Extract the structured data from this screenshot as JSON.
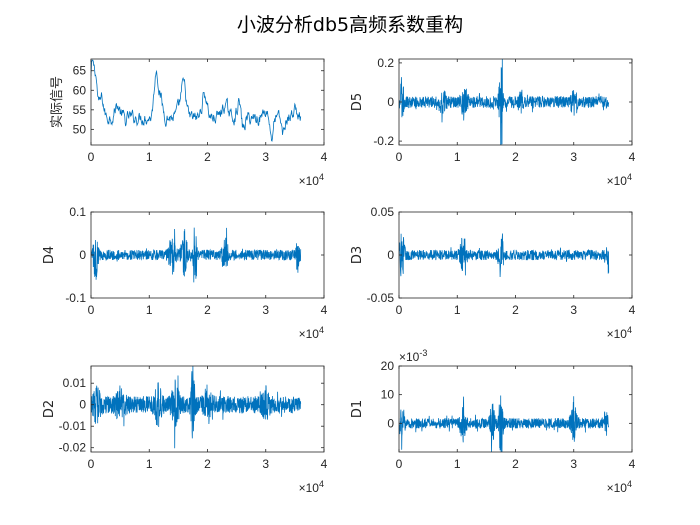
{
  "figure_title": "小波分析db5高频系数重构",
  "line_color": "#0072BD",
  "chart_data": [
    {
      "type": "line",
      "name": "signal",
      "ylabel": "实际信号",
      "xlim": [
        0,
        4
      ],
      "ylim": [
        46,
        68
      ],
      "xticks": [
        {
          "v": 0,
          "t": "0"
        },
        {
          "v": 1,
          "t": "1"
        },
        {
          "v": 2,
          "t": "2"
        },
        {
          "v": 3,
          "t": "3"
        },
        {
          "v": 4,
          "t": "4"
        }
      ],
      "yticks": [
        {
          "v": 50,
          "t": "50"
        },
        {
          "v": 55,
          "t": "55"
        },
        {
          "v": 60,
          "t": "60"
        },
        {
          "v": 65,
          "t": "65"
        }
      ],
      "x_multiplier": {
        "base": "×10",
        "exp": "4"
      },
      "x_end": 3.6,
      "samples": 460,
      "base_level": 53,
      "noise": 1.3,
      "peaks": [
        {
          "x": 0.02,
          "y": 13,
          "w": 0.04
        },
        {
          "x": 0.08,
          "y": 10,
          "w": 0.04
        },
        {
          "x": 0.18,
          "y": 5,
          "w": 0.05
        },
        {
          "x": 0.45,
          "y": 3,
          "w": 0.06
        },
        {
          "x": 0.6,
          "y": 3,
          "w": 0.05
        },
        {
          "x": 1.12,
          "y": 12,
          "w": 0.05
        },
        {
          "x": 1.2,
          "y": 4,
          "w": 0.05
        },
        {
          "x": 1.55,
          "y": 4,
          "w": 0.07
        },
        {
          "x": 1.6,
          "y": 6,
          "w": 0.05
        },
        {
          "x": 1.95,
          "y": 6,
          "w": 0.06
        },
        {
          "x": 2.3,
          "y": 3,
          "w": 0.08
        },
        {
          "x": 2.55,
          "y": 5,
          "w": 0.05
        },
        {
          "x": 3.0,
          "y": 2,
          "w": 0.06
        },
        {
          "x": 3.5,
          "y": 2,
          "w": 0.05
        }
      ],
      "dips": [
        {
          "x": 0.6,
          "y": 4,
          "w": 0.04
        },
        {
          "x": 2.6,
          "y": 4,
          "w": 0.05
        },
        {
          "x": 3.1,
          "y": 5,
          "w": 0.04
        },
        {
          "x": 3.3,
          "y": 4,
          "w": 0.04
        }
      ]
    },
    {
      "type": "line",
      "name": "D5",
      "ylabel": "D5",
      "xlim": [
        0,
        4
      ],
      "ylim": [
        -0.22,
        0.22
      ],
      "xticks": [
        {
          "v": 0,
          "t": "0"
        },
        {
          "v": 1,
          "t": "1"
        },
        {
          "v": 2,
          "t": "2"
        },
        {
          "v": 3,
          "t": "3"
        },
        {
          "v": 4,
          "t": "4"
        }
      ],
      "yticks": [
        {
          "v": -0.2,
          "t": "-0.2"
        },
        {
          "v": 0,
          "t": "0"
        },
        {
          "v": 0.2,
          "t": "0.2"
        }
      ],
      "x_multiplier": {
        "base": "×10",
        "exp": "4"
      },
      "x_end": 3.6,
      "samples": 800,
      "noise": 0.03,
      "bursts": [
        {
          "x": 0.05,
          "a": 0.12,
          "w": 0.03
        },
        {
          "x": 0.75,
          "a": 0.05,
          "w": 0.05
        },
        {
          "x": 1.12,
          "a": 0.07,
          "w": 0.05
        },
        {
          "x": 1.75,
          "a": 0.22,
          "w": 0.03
        },
        {
          "x": 2.1,
          "a": 0.05,
          "w": 0.05
        },
        {
          "x": 3.0,
          "a": 0.05,
          "w": 0.05
        }
      ]
    },
    {
      "type": "line",
      "name": "D4",
      "ylabel": "D4",
      "xlim": [
        0,
        4
      ],
      "ylim": [
        -0.1,
        0.1
      ],
      "xticks": [
        {
          "v": 0,
          "t": "0"
        },
        {
          "v": 1,
          "t": "1"
        },
        {
          "v": 2,
          "t": "2"
        },
        {
          "v": 3,
          "t": "3"
        },
        {
          "v": 4,
          "t": "4"
        }
      ],
      "yticks": [
        {
          "v": -0.1,
          "t": "-0.1"
        },
        {
          "v": 0,
          "t": "0"
        },
        {
          "v": 0.1,
          "t": "0.1"
        }
      ],
      "x_multiplier": {
        "base": "×10",
        "exp": "4"
      },
      "x_end": 3.6,
      "samples": 900,
      "noise": 0.012,
      "bursts": [
        {
          "x": 0.08,
          "a": 0.05,
          "w": 0.04
        },
        {
          "x": 1.4,
          "a": 0.04,
          "w": 0.06
        },
        {
          "x": 1.6,
          "a": 0.05,
          "w": 0.05
        },
        {
          "x": 1.78,
          "a": 0.07,
          "w": 0.03
        },
        {
          "x": 2.3,
          "a": 0.035,
          "w": 0.05
        },
        {
          "x": 3.55,
          "a": 0.03,
          "w": 0.03
        }
      ]
    },
    {
      "type": "line",
      "name": "D3",
      "ylabel": "D3",
      "xlim": [
        0,
        4
      ],
      "ylim": [
        -0.05,
        0.05
      ],
      "xticks": [
        {
          "v": 0,
          "t": "0"
        },
        {
          "v": 1,
          "t": "1"
        },
        {
          "v": 2,
          "t": "2"
        },
        {
          "v": 3,
          "t": "3"
        },
        {
          "v": 4,
          "t": "4"
        }
      ],
      "yticks": [
        {
          "v": -0.05,
          "t": "-0.05"
        },
        {
          "v": 0,
          "t": "0"
        },
        {
          "v": 0.05,
          "t": "0.05"
        }
      ],
      "x_multiplier": {
        "base": "×10",
        "exp": "4"
      },
      "x_end": 3.6,
      "samples": 900,
      "noise": 0.006,
      "bursts": [
        {
          "x": 0.05,
          "a": 0.025,
          "w": 0.04
        },
        {
          "x": 1.1,
          "a": 0.02,
          "w": 0.05
        },
        {
          "x": 1.75,
          "a": 0.03,
          "w": 0.04
        },
        {
          "x": 3.6,
          "a": 0.03,
          "w": 0.02
        }
      ]
    },
    {
      "type": "line",
      "name": "D2",
      "ylabel": "D2",
      "xlim": [
        0,
        4
      ],
      "ylim": [
        -0.022,
        0.018
      ],
      "xticks": [
        {
          "v": 0,
          "t": "0"
        },
        {
          "v": 1,
          "t": "1"
        },
        {
          "v": 2,
          "t": "2"
        },
        {
          "v": 3,
          "t": "3"
        },
        {
          "v": 4,
          "t": "4"
        }
      ],
      "yticks": [
        {
          "v": -0.02,
          "t": "-0.02"
        },
        {
          "v": -0.01,
          "t": "-0.01"
        },
        {
          "v": 0,
          "t": "0"
        },
        {
          "v": 0.01,
          "t": "0.01"
        }
      ],
      "x_multiplier": {
        "base": "×10",
        "exp": "4"
      },
      "x_end": 3.6,
      "samples": 1000,
      "noise": 0.004,
      "bursts": [
        {
          "x": 0.1,
          "a": 0.006,
          "w": 0.06
        },
        {
          "x": 0.5,
          "a": 0.005,
          "w": 0.08
        },
        {
          "x": 1.15,
          "a": 0.007,
          "w": 0.06
        },
        {
          "x": 1.45,
          "a": 0.008,
          "w": 0.06
        },
        {
          "x": 1.75,
          "a": 0.018,
          "w": 0.03
        },
        {
          "x": 2.0,
          "a": 0.006,
          "w": 0.06
        },
        {
          "x": 3.0,
          "a": 0.005,
          "w": 0.06
        }
      ]
    },
    {
      "type": "line",
      "name": "D1",
      "ylabel": "D1",
      "xlim": [
        0,
        4
      ],
      "ylim": [
        -0.01,
        0.02
      ],
      "xticks": [
        {
          "v": 0,
          "t": "0"
        },
        {
          "v": 1,
          "t": "1"
        },
        {
          "v": 2,
          "t": "2"
        },
        {
          "v": 3,
          "t": "3"
        },
        {
          "v": 4,
          "t": "4"
        }
      ],
      "yticks": [
        {
          "v": 0,
          "t": "0"
        },
        {
          "v": 0.01,
          "t": "10"
        },
        {
          "v": 0.02,
          "t": "20"
        }
      ],
      "x_multiplier": {
        "base": "×10",
        "exp": "4"
      },
      "y_multiplier": {
        "base": "×10",
        "exp": "-3"
      },
      "x_end": 3.6,
      "samples": 1000,
      "noise": 0.0018,
      "bursts": [
        {
          "x": 0.04,
          "a": 0.004,
          "w": 0.04
        },
        {
          "x": 1.1,
          "a": 0.006,
          "w": 0.05
        },
        {
          "x": 1.6,
          "a": 0.007,
          "w": 0.04
        },
        {
          "x": 1.75,
          "a": 0.013,
          "w": 0.03
        },
        {
          "x": 3.0,
          "a": 0.006,
          "w": 0.05
        },
        {
          "x": 3.55,
          "a": 0.004,
          "w": 0.03
        }
      ]
    }
  ]
}
